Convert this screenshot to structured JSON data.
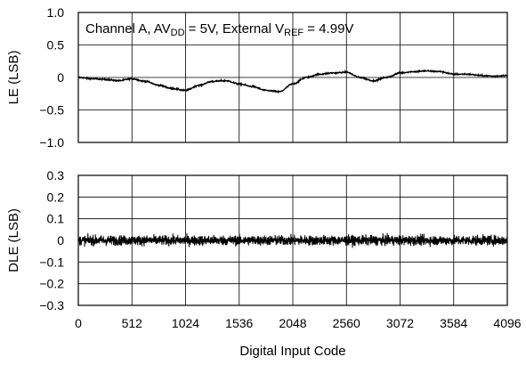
{
  "chart_data": [
    {
      "type": "line",
      "ylabel": "LE (LSB)",
      "ylim": [
        -1.0,
        1.0
      ],
      "yticks": [
        1.0,
        0.5,
        0,
        -0.5,
        -1.0
      ],
      "ytick_labels": [
        "1.0",
        "0.5",
        "0",
        "−0.5",
        "−1.0"
      ],
      "xlim": [
        0,
        4096
      ],
      "xticks": [
        0,
        512,
        1024,
        1536,
        2048,
        2560,
        3072,
        3584,
        4096
      ],
      "grid": true,
      "annotation": {
        "prefix": "Channel A, AV",
        "sub1": "DD",
        "mid": " = 5V, External V",
        "sub2": "REF",
        "suffix": " = 4.99V"
      },
      "series": [
        {
          "color": "#000000",
          "noise_amplitude": 0.02,
          "points": [
            [
              0,
              0.0
            ],
            [
              128,
              -0.02
            ],
            [
              256,
              -0.03
            ],
            [
              384,
              -0.05
            ],
            [
              512,
              -0.02
            ],
            [
              640,
              -0.06
            ],
            [
              768,
              -0.12
            ],
            [
              896,
              -0.17
            ],
            [
              1024,
              -0.2
            ],
            [
              1152,
              -0.12
            ],
            [
              1280,
              -0.06
            ],
            [
              1408,
              -0.05
            ],
            [
              1536,
              -0.1
            ],
            [
              1664,
              -0.14
            ],
            [
              1792,
              -0.2
            ],
            [
              1920,
              -0.22
            ],
            [
              2048,
              -0.1
            ],
            [
              2176,
              0.0
            ],
            [
              2304,
              0.05
            ],
            [
              2432,
              0.07
            ],
            [
              2560,
              0.08
            ],
            [
              2688,
              0.0
            ],
            [
              2816,
              -0.05
            ],
            [
              2944,
              0.0
            ],
            [
              3072,
              0.07
            ],
            [
              3200,
              0.09
            ],
            [
              3328,
              0.1
            ],
            [
              3456,
              0.09
            ],
            [
              3584,
              0.05
            ],
            [
              3712,
              0.05
            ],
            [
              3840,
              0.03
            ],
            [
              3968,
              0.02
            ],
            [
              4095,
              0.03
            ]
          ]
        }
      ]
    },
    {
      "type": "line",
      "ylabel": "DLE (LSB)",
      "xlabel": "Digital Input Code",
      "ylim": [
        -0.3,
        0.3
      ],
      "yticks": [
        0.3,
        0.2,
        0.1,
        0,
        -0.1,
        -0.2,
        -0.3
      ],
      "ytick_labels": [
        "0.3",
        "0.2",
        "0.1",
        "0",
        "−0.1",
        "−0.2",
        "−0.3"
      ],
      "xlim": [
        0,
        4096
      ],
      "xticks": [
        0,
        512,
        1024,
        1536,
        2048,
        2560,
        3072,
        3584,
        4096
      ],
      "xtick_labels": [
        "0",
        "512",
        "1024",
        "1536",
        "2048",
        "2560",
        "3072",
        "3584",
        "4096"
      ],
      "grid": true,
      "series": [
        {
          "color": "#000000",
          "mean": 0.0,
          "noise_amplitude": 0.05,
          "x_range": [
            0,
            4095
          ]
        }
      ]
    }
  ]
}
